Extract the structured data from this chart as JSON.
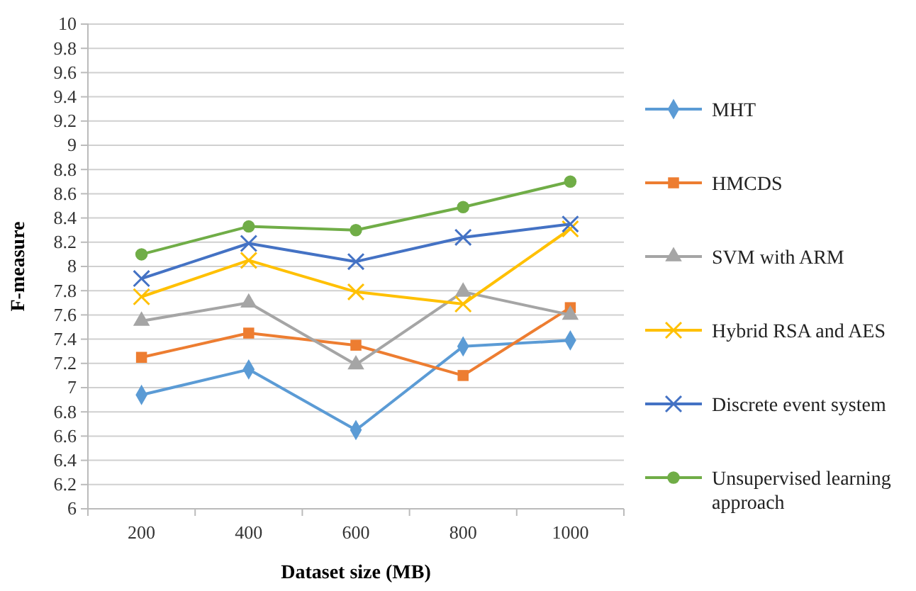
{
  "chart_data": {
    "type": "line",
    "xlabel": "Dataset size (MB)",
    "ylabel": "F-measure",
    "categories": [
      "200",
      "400",
      "600",
      "800",
      "1000"
    ],
    "ylim": [
      6,
      10
    ],
    "yticks": [
      6,
      {
        "value": 6.2,
        "label": "6.2"
      },
      {
        "value": 6.4,
        "label": "6.4"
      },
      {
        "value": 6.6,
        "label": "6.6"
      },
      {
        "value": 6.8,
        "label": "6.8"
      },
      7,
      {
        "value": 7.2,
        "label": "7.2"
      },
      {
        "value": 7.4,
        "label": "7.4"
      },
      {
        "value": 7.6,
        "label": "7.6"
      },
      {
        "value": 7.8,
        "label": "7.8"
      },
      8,
      {
        "value": 8.2,
        "label": "8.2"
      },
      {
        "value": 8.4,
        "label": "8.4"
      },
      {
        "value": 8.6,
        "label": "8.6"
      },
      {
        "value": 8.8,
        "label": "8.8"
      },
      9,
      {
        "value": 9.2,
        "label": "9.2"
      },
      {
        "value": 9.4,
        "label": "9.4"
      },
      {
        "value": 9.6,
        "label": "9.6"
      },
      {
        "value": 9.8,
        "label": "9.8"
      },
      10
    ],
    "grid": "y",
    "legend": "right",
    "series": [
      {
        "name": "MHT",
        "color": "#5b9bd5",
        "marker": "diamond",
        "values": [
          6.94,
          7.15,
          6.65,
          7.34,
          7.39
        ]
      },
      {
        "name": "HMCDS",
        "color": "#ed7d31",
        "marker": "square",
        "values": [
          7.25,
          7.45,
          7.35,
          7.1,
          7.66
        ]
      },
      {
        "name": "SVM with ARM",
        "color": "#a5a5a5",
        "marker": "triangle",
        "values": [
          7.55,
          7.7,
          7.19,
          7.79,
          7.6
        ]
      },
      {
        "name": "Hybrid RSA and AES",
        "color": "#ffc000",
        "marker": "cross",
        "values": [
          7.75,
          8.05,
          7.79,
          7.69,
          8.31
        ]
      },
      {
        "name": "Discrete event system",
        "color": "#4472c4",
        "marker": "cross",
        "values": [
          7.9,
          8.19,
          8.04,
          8.24,
          8.35
        ]
      },
      {
        "name": "Unsupervised learning approach",
        "color": "#70ad47",
        "marker": "circle",
        "values": [
          8.1,
          8.33,
          8.3,
          8.49,
          8.7
        ]
      }
    ]
  }
}
